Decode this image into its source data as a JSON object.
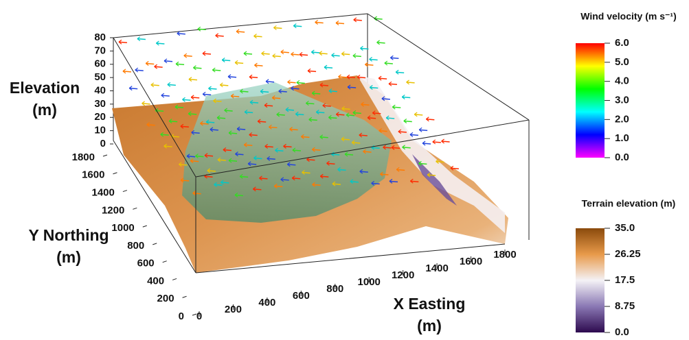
{
  "chart_data": {
    "type": "surface3d",
    "z_axis": {
      "label_lines": [
        "Elevation",
        "(m)"
      ],
      "lim": [
        0,
        80
      ],
      "ticks": [
        0,
        10,
        20,
        30,
        40,
        50,
        60,
        70,
        80
      ]
    },
    "y_axis": {
      "label_lines": [
        "Y Northing",
        "(m)"
      ],
      "lim": [
        0,
        1800
      ],
      "ticks": [
        0,
        200,
        400,
        600,
        800,
        1000,
        1200,
        1400,
        1600,
        1800
      ]
    },
    "x_axis": {
      "label_lines": [
        "X Easting",
        "(m)"
      ],
      "lim": [
        0,
        1800
      ],
      "ticks": [
        0,
        200,
        400,
        600,
        800,
        1000,
        1200,
        1400,
        1600,
        1800
      ]
    },
    "colorbars": [
      {
        "title": "Wind velocity (m s⁻¹)",
        "lim": [
          0,
          6
        ],
        "colors": [
          "#ff00ff",
          "#0000ff",
          "#00ffff",
          "#00ff00",
          "#ffff00",
          "#ff0000"
        ],
        "ticks": [
          {
            "value": 6,
            "label": "6.0"
          },
          {
            "value": 5,
            "label": "5.0"
          },
          {
            "value": 4,
            "label": "4.0"
          },
          {
            "value": 3,
            "label": "3.0"
          },
          {
            "value": 2,
            "label": "2.0"
          },
          {
            "value": 1,
            "label": "1.0"
          },
          {
            "value": 0,
            "label": "0.0"
          }
        ]
      },
      {
        "title": "Terrain elevation (m)",
        "lim": [
          0,
          35
        ],
        "colors": [
          "#2d0a4e",
          "#8a78b4",
          "#f4f2f6",
          "#e89a4a",
          "#8a4a0c"
        ],
        "ticks": [
          {
            "value": 35,
            "label": "35.0"
          },
          {
            "value": 26.25,
            "label": "26.25"
          },
          {
            "value": 17.5,
            "label": "17.5"
          },
          {
            "value": 8.75,
            "label": "8.75"
          },
          {
            "value": 0,
            "label": "0.0"
          }
        ]
      }
    ]
  }
}
